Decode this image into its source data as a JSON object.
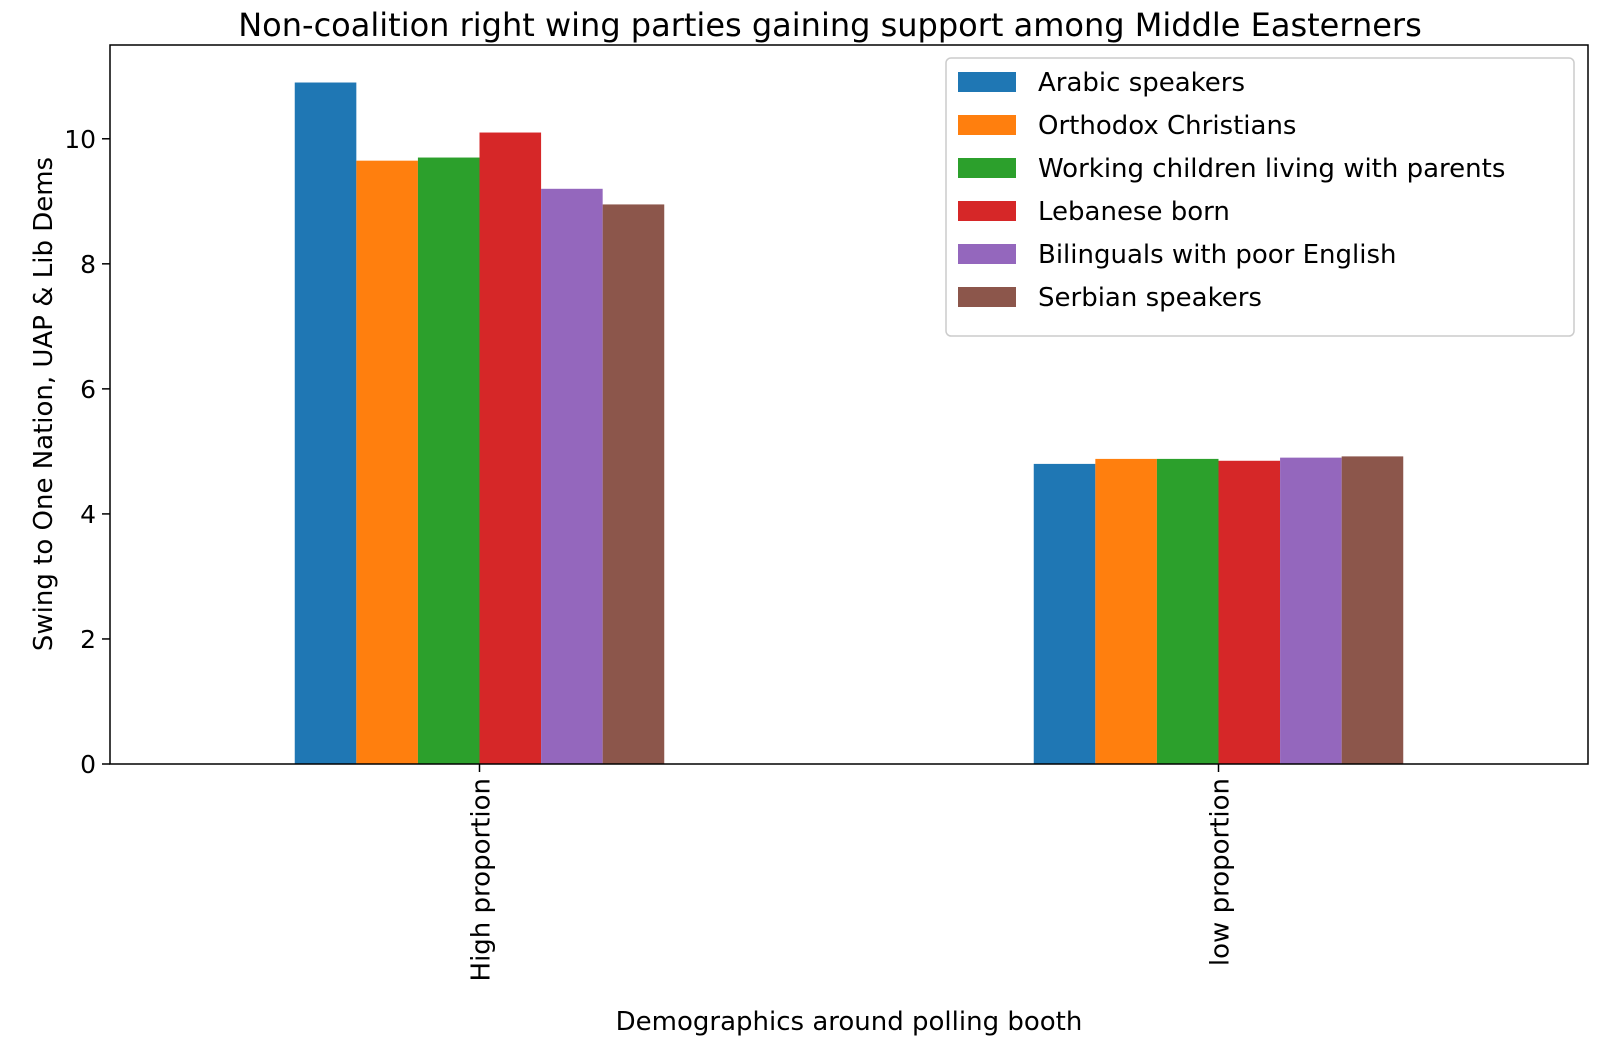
{
  "chart_data": {
    "type": "bar",
    "title": "Non-coalition right wing parties gaining support among Middle Easterners",
    "xlabel": "Demographics around polling booth",
    "ylabel": "Swing to One Nation, UAP & Lib Dems",
    "ylim": [
      0,
      11.5
    ],
    "yticks": [
      0,
      2,
      4,
      6,
      8,
      10
    ],
    "categories": [
      "High proportion",
      "low proportion"
    ],
    "legend_position": "top-right",
    "series": [
      {
        "name": "Arabic speakers",
        "color": "#1f77b4",
        "values": [
          10.9,
          4.8
        ]
      },
      {
        "name": "Orthodox Christians",
        "color": "#ff7f0e",
        "values": [
          9.65,
          4.88
        ]
      },
      {
        "name": "Working children living with parents",
        "color": "#2ca02c",
        "values": [
          9.7,
          4.88
        ]
      },
      {
        "name": "Lebanese born",
        "color": "#d62728",
        "values": [
          10.1,
          4.85
        ]
      },
      {
        "name": "Bilinguals with poor English",
        "color": "#9467bd",
        "values": [
          9.2,
          4.9
        ]
      },
      {
        "name": "Serbian speakers",
        "color": "#8c564b",
        "values": [
          8.95,
          4.92
        ]
      }
    ]
  }
}
